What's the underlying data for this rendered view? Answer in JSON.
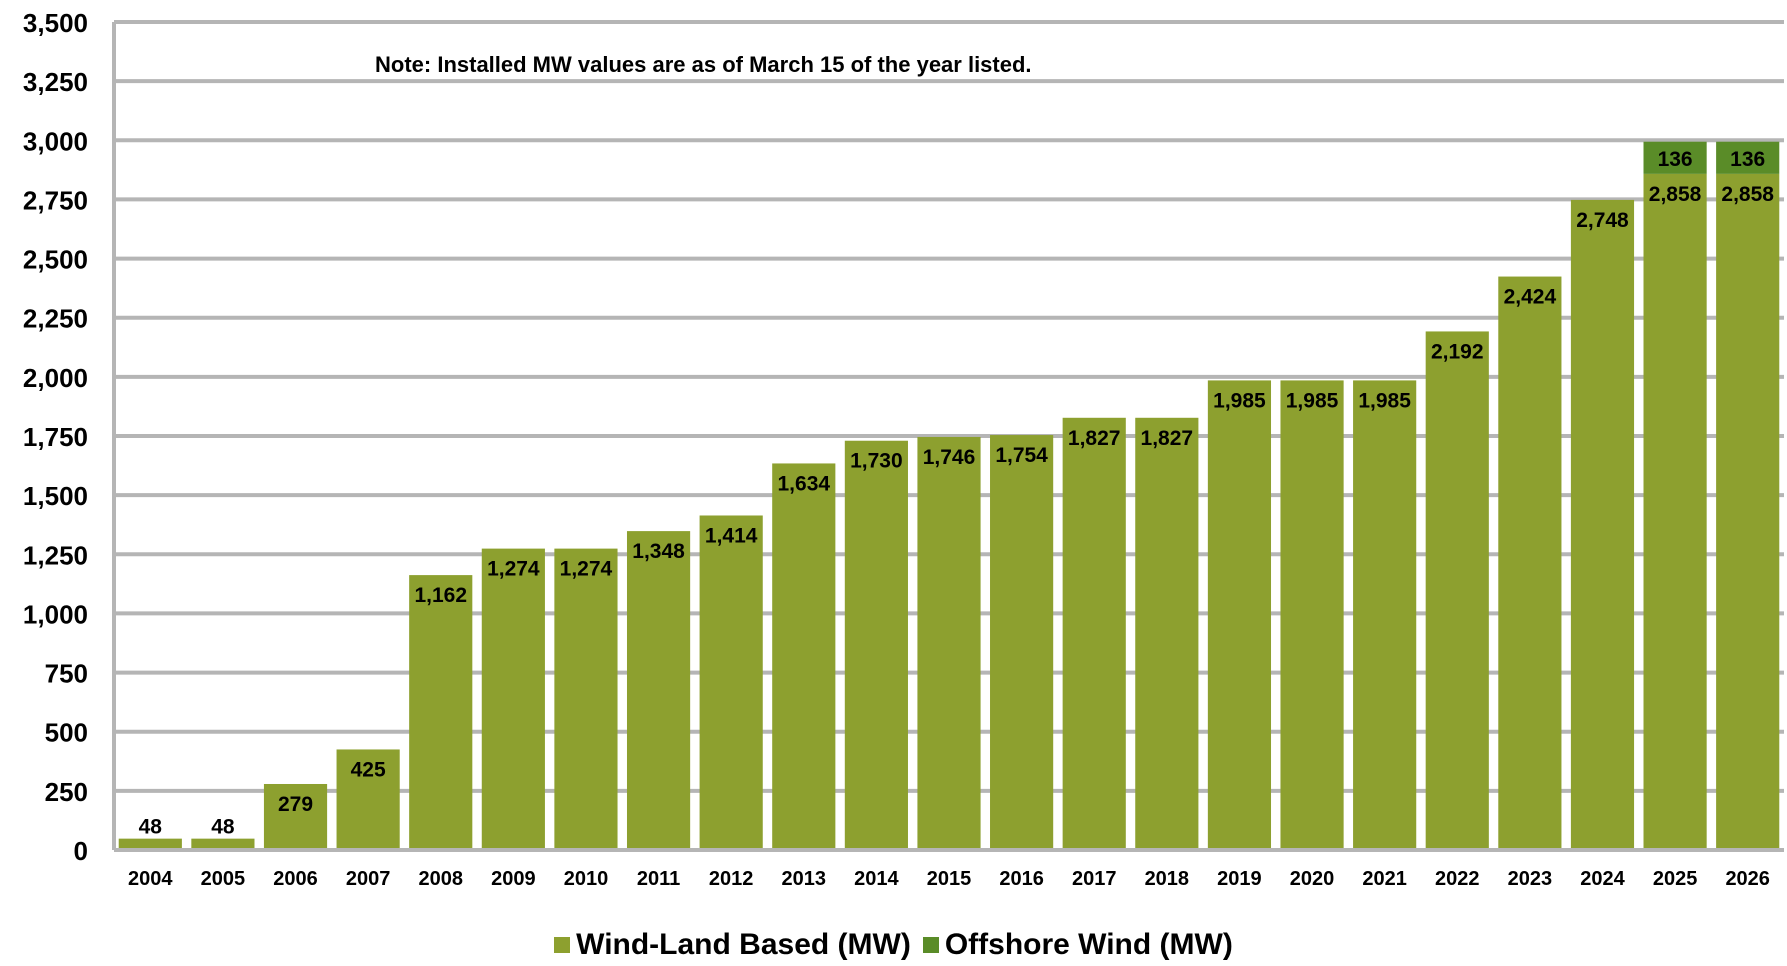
{
  "chart_data": {
    "type": "bar",
    "stacked": true,
    "note": "Note: Installed MW values are as of March 15 of the year listed.",
    "categories": [
      "2004",
      "2005",
      "2006",
      "2007",
      "2008",
      "2009",
      "2010",
      "2011",
      "2012",
      "2013",
      "2014",
      "2015",
      "2016",
      "2017",
      "2018",
      "2019",
      "2020",
      "2021",
      "2022",
      "2023",
      "2024",
      "2025",
      "2026"
    ],
    "series": [
      {
        "name": "Wind-Land Based (MW)",
        "color": "#8da02f",
        "values": [
          48,
          48,
          279,
          425,
          1162,
          1274,
          1274,
          1348,
          1414,
          1634,
          1730,
          1746,
          1754,
          1827,
          1827,
          1985,
          1985,
          1985,
          2192,
          2424,
          2748,
          2858,
          2858
        ],
        "labels": [
          "48",
          "48",
          "279",
          "425",
          "1,162",
          "1,274",
          "1,274",
          "1,348",
          "1,414",
          "1,634",
          "1,730",
          "1,746",
          "1,754",
          "1,827",
          "1,827",
          "1,985",
          "1,985",
          "1,985",
          "2,192",
          "2,424",
          "2,748",
          "2,858",
          "2,858"
        ]
      },
      {
        "name": "Offshore Wind (MW)",
        "color": "#5a8c28",
        "values": [
          0,
          0,
          0,
          0,
          0,
          0,
          0,
          0,
          0,
          0,
          0,
          0,
          0,
          0,
          0,
          0,
          0,
          0,
          0,
          0,
          0,
          136,
          136
        ],
        "labels": [
          "",
          "",
          "",
          "",
          "",
          "",
          "",
          "",
          "",
          "",
          "",
          "",
          "",
          "",
          "",
          "",
          "",
          "",
          "",
          "",
          "",
          "136",
          "136"
        ]
      }
    ],
    "ylim": [
      0,
      3500
    ],
    "yticks": [
      0,
      250,
      500,
      750,
      1000,
      1250,
      1500,
      1750,
      2000,
      2250,
      2500,
      2750,
      3000,
      3250,
      3500
    ],
    "ytick_labels": [
      "0",
      "250",
      "500",
      "750",
      "1,000",
      "1,250",
      "1,500",
      "1,750",
      "2,000",
      "2,250",
      "2,500",
      "2,750",
      "3,000",
      "3,250",
      "3,500"
    ],
    "grid": true,
    "legend_position": "bottom",
    "gridline_color": "#b5b5b5"
  }
}
